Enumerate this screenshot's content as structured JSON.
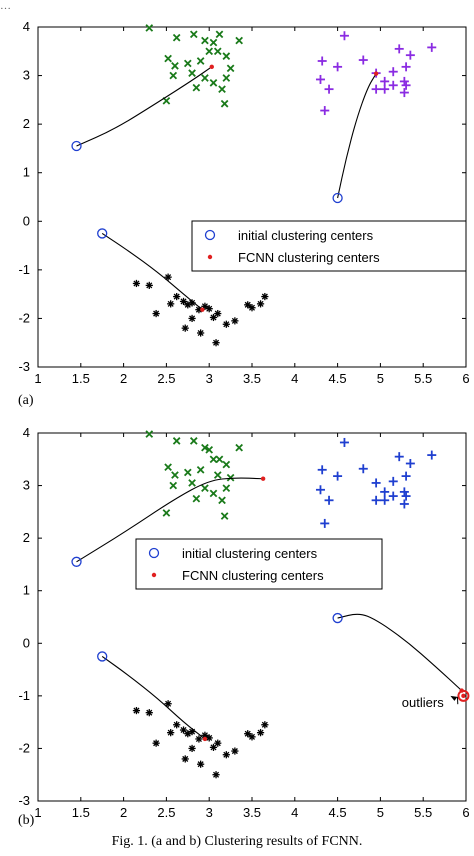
{
  "header_fragment": "…",
  "caption": "Fig. 1.  (a and b) Clustering results of FCNN.",
  "chart_data": [
    {
      "type": "scatter",
      "panel_label": "(a)",
      "xlim": [
        1,
        6
      ],
      "ylim": [
        -3,
        4
      ],
      "xticks": [
        1,
        1.5,
        2,
        2.5,
        3,
        3.5,
        4,
        4.5,
        5,
        5.5,
        6
      ],
      "xtick_labels": [
        "1",
        "1.5",
        "2",
        "2.5",
        "3",
        "3.5",
        "4",
        "4.5",
        "5",
        "5.5",
        "6"
      ],
      "yticks": [
        -3,
        -2,
        -1,
        0,
        1,
        2,
        3,
        4
      ],
      "ytick_labels": [
        "-3",
        "-2",
        "-1",
        "0",
        "1",
        "2",
        "3",
        "4"
      ],
      "legend_position": "center-right",
      "legend": [
        {
          "label": "initial clustering centers",
          "marker": "open-circle",
          "color": "#1f3fd0"
        },
        {
          "label": "FCNN clustering centers",
          "marker": "dot",
          "color": "#e02020"
        }
      ],
      "series": [
        {
          "marker": "x",
          "color": "#1a7a1a",
          "points": [
            [
              2.3,
              3.98
            ],
            [
              2.62,
              3.78
            ],
            [
              2.82,
              3.85
            ],
            [
              2.95,
              3.72
            ],
            [
              3.05,
              3.68
            ],
            [
              3.12,
              3.85
            ],
            [
              3.35,
              3.72
            ],
            [
              2.52,
              3.35
            ],
            [
              2.6,
              3.2
            ],
            [
              2.75,
              3.25
            ],
            [
              2.9,
              3.3
            ],
            [
              3.0,
              3.5
            ],
            [
              3.1,
              3.5
            ],
            [
              3.2,
              3.4
            ],
            [
              3.25,
              3.15
            ],
            [
              2.58,
              3.0
            ],
            [
              2.8,
              3.05
            ],
            [
              2.95,
              2.95
            ],
            [
              3.05,
              2.85
            ],
            [
              3.2,
              2.95
            ],
            [
              3.15,
              2.72
            ],
            [
              2.5,
              2.48
            ],
            [
              2.85,
              2.75
            ],
            [
              3.18,
              2.42
            ]
          ]
        },
        {
          "marker": "plus",
          "color": "#8a2be2",
          "points": [
            [
              4.58,
              3.82
            ],
            [
              4.32,
              3.3
            ],
            [
              4.5,
              3.18
            ],
            [
              4.8,
              3.32
            ],
            [
              4.3,
              2.92
            ],
            [
              4.4,
              2.72
            ],
            [
              4.35,
              2.28
            ],
            [
              4.95,
              3.05
            ],
            [
              5.05,
              2.88
            ],
            [
              5.15,
              3.08
            ],
            [
              4.95,
              2.72
            ],
            [
              5.05,
              2.72
            ],
            [
              5.15,
              2.8
            ],
            [
              5.22,
              3.55
            ],
            [
              5.35,
              3.42
            ],
            [
              5.3,
              3.18
            ],
            [
              5.28,
              2.88
            ],
            [
              5.3,
              2.8
            ],
            [
              5.28,
              2.65
            ],
            [
              5.6,
              3.58
            ]
          ]
        },
        {
          "marker": "star",
          "color": "#000000",
          "points": [
            [
              2.15,
              -1.28
            ],
            [
              2.3,
              -1.32
            ],
            [
              2.52,
              -1.15
            ],
            [
              2.38,
              -1.9
            ],
            [
              2.55,
              -1.7
            ],
            [
              2.62,
              -1.55
            ],
            [
              2.7,
              -1.65
            ],
            [
              2.75,
              -1.72
            ],
            [
              2.8,
              -1.68
            ],
            [
              2.88,
              -1.82
            ],
            [
              2.8,
              -2.0
            ],
            [
              2.72,
              -2.2
            ],
            [
              2.9,
              -2.3
            ],
            [
              3.05,
              -1.98
            ],
            [
              3.1,
              -1.9
            ],
            [
              3.2,
              -2.12
            ],
            [
              3.3,
              -2.05
            ],
            [
              3.08,
              -2.5
            ],
            [
              3.45,
              -1.72
            ],
            [
              3.5,
              -1.78
            ],
            [
              3.6,
              -1.7
            ],
            [
              3.65,
              -1.55
            ],
            [
              3.0,
              -1.8
            ],
            [
              2.95,
              -1.75
            ]
          ]
        }
      ],
      "trajectories": [
        {
          "start": [
            1.45,
            1.55
          ],
          "end": [
            3.03,
            3.18
          ],
          "path": [
            [
              1.45,
              1.55
            ],
            [
              1.9,
              1.9
            ],
            [
              2.4,
              2.45
            ],
            [
              2.8,
              2.9
            ],
            [
              3.03,
              3.18
            ]
          ]
        },
        {
          "start": [
            4.5,
            0.48
          ],
          "end": [
            4.95,
            3.04
          ],
          "path": [
            [
              4.5,
              0.48
            ],
            [
              4.6,
              1.3
            ],
            [
              4.72,
              2.1
            ],
            [
              4.85,
              2.75
            ],
            [
              4.95,
              3.04
            ]
          ]
        },
        {
          "start": [
            1.75,
            -0.25
          ],
          "end": [
            2.92,
            -1.82
          ],
          "path": [
            [
              1.75,
              -0.25
            ],
            [
              2.05,
              -0.6
            ],
            [
              2.4,
              -1.05
            ],
            [
              2.7,
              -1.5
            ],
            [
              2.92,
              -1.82
            ]
          ]
        }
      ]
    },
    {
      "type": "scatter",
      "panel_label": "(b)",
      "xlim": [
        1,
        6
      ],
      "ylim": [
        -3,
        4
      ],
      "xticks": [
        1,
        1.5,
        2,
        2.5,
        3,
        3.5,
        4,
        4.5,
        5,
        5.5,
        6
      ],
      "xtick_labels": [
        "1",
        "1.5",
        "2",
        "2.5",
        "3",
        "3.5",
        "4",
        "4.5",
        "5",
        "5.5",
        "6"
      ],
      "yticks": [
        -3,
        -2,
        -1,
        0,
        1,
        2,
        3,
        4
      ],
      "ytick_labels": [
        "-3",
        "-2",
        "-1",
        "0",
        "1",
        "2",
        "3",
        "4"
      ],
      "legend_position": "center",
      "legend": [
        {
          "label": "initial clustering centers",
          "marker": "open-circle",
          "color": "#1f3fd0"
        },
        {
          "label": "FCNN clustering centers",
          "marker": "dot",
          "color": "#e02020"
        }
      ],
      "annotation": {
        "text": "outliers",
        "anchor": [
          5.97,
          -1.0
        ],
        "text_at": [
          5.25,
          -1.12
        ]
      },
      "outlier_point": [
        5.97,
        -1.0
      ],
      "series": [
        {
          "marker": "x",
          "color": "#1a7a1a",
          "points": [
            [
              2.3,
              3.98
            ],
            [
              2.62,
              3.85
            ],
            [
              2.82,
              3.85
            ],
            [
              2.95,
              3.72
            ],
            [
              3.05,
              3.5
            ],
            [
              3.12,
              3.5
            ],
            [
              3.35,
              3.72
            ],
            [
              2.52,
              3.35
            ],
            [
              2.6,
              3.2
            ],
            [
              2.75,
              3.25
            ],
            [
              2.9,
              3.3
            ],
            [
              3.0,
              3.68
            ],
            [
              3.1,
              3.2
            ],
            [
              3.2,
              3.4
            ],
            [
              3.25,
              3.15
            ],
            [
              2.58,
              3.0
            ],
            [
              2.8,
              3.05
            ],
            [
              2.95,
              2.95
            ],
            [
              3.05,
              2.85
            ],
            [
              3.2,
              2.95
            ],
            [
              3.15,
              2.72
            ],
            [
              2.5,
              2.48
            ],
            [
              2.85,
              2.75
            ],
            [
              3.18,
              2.42
            ]
          ]
        },
        {
          "marker": "plus",
          "color": "#1f3fd0",
          "points": [
            [
              4.58,
              3.82
            ],
            [
              4.32,
              3.3
            ],
            [
              4.5,
              3.18
            ],
            [
              4.8,
              3.32
            ],
            [
              4.3,
              2.92
            ],
            [
              4.4,
              2.72
            ],
            [
              4.35,
              2.28
            ],
            [
              4.95,
              3.05
            ],
            [
              5.05,
              2.88
            ],
            [
              5.15,
              3.08
            ],
            [
              4.95,
              2.72
            ],
            [
              5.05,
              2.72
            ],
            [
              5.15,
              2.8
            ],
            [
              5.22,
              3.55
            ],
            [
              5.35,
              3.42
            ],
            [
              5.3,
              3.18
            ],
            [
              5.28,
              2.88
            ],
            [
              5.3,
              2.8
            ],
            [
              5.28,
              2.65
            ],
            [
              5.6,
              3.58
            ]
          ]
        },
        {
          "marker": "star",
          "color": "#000000",
          "points": [
            [
              2.15,
              -1.28
            ],
            [
              2.3,
              -1.32
            ],
            [
              2.52,
              -1.15
            ],
            [
              2.38,
              -1.9
            ],
            [
              2.55,
              -1.7
            ],
            [
              2.62,
              -1.55
            ],
            [
              2.7,
              -1.65
            ],
            [
              2.75,
              -1.72
            ],
            [
              2.8,
              -1.68
            ],
            [
              2.88,
              -1.82
            ],
            [
              2.8,
              -2.0
            ],
            [
              2.72,
              -2.2
            ],
            [
              2.9,
              -2.3
            ],
            [
              3.05,
              -1.98
            ],
            [
              3.1,
              -1.9
            ],
            [
              3.2,
              -2.12
            ],
            [
              3.3,
              -2.05
            ],
            [
              3.08,
              -2.5
            ],
            [
              3.45,
              -1.72
            ],
            [
              3.5,
              -1.78
            ],
            [
              3.6,
              -1.7
            ],
            [
              3.65,
              -1.55
            ],
            [
              3.0,
              -1.8
            ],
            [
              2.95,
              -1.75
            ]
          ]
        }
      ],
      "trajectories": [
        {
          "start": [
            1.45,
            1.55
          ],
          "end": [
            3.63,
            3.13
          ],
          "path": [
            [
              1.45,
              1.55
            ],
            [
              2.0,
              2.1
            ],
            [
              2.6,
              2.75
            ],
            [
              3.0,
              3.1
            ],
            [
              3.3,
              3.15
            ],
            [
              3.63,
              3.13
            ]
          ]
        },
        {
          "start": [
            4.5,
            0.48
          ],
          "end": [
            5.95,
            -0.9
          ],
          "path": [
            [
              4.5,
              0.48
            ],
            [
              4.75,
              0.58
            ],
            [
              4.95,
              0.45
            ],
            [
              5.3,
              0.05
            ],
            [
              5.65,
              -0.45
            ],
            [
              5.95,
              -0.9
            ]
          ]
        },
        {
          "start": [
            1.75,
            -0.25
          ],
          "end": [
            2.95,
            -1.82
          ],
          "path": [
            [
              1.75,
              -0.25
            ],
            [
              2.05,
              -0.6
            ],
            [
              2.4,
              -1.05
            ],
            [
              2.7,
              -1.5
            ],
            [
              2.95,
              -1.82
            ]
          ]
        }
      ]
    }
  ]
}
